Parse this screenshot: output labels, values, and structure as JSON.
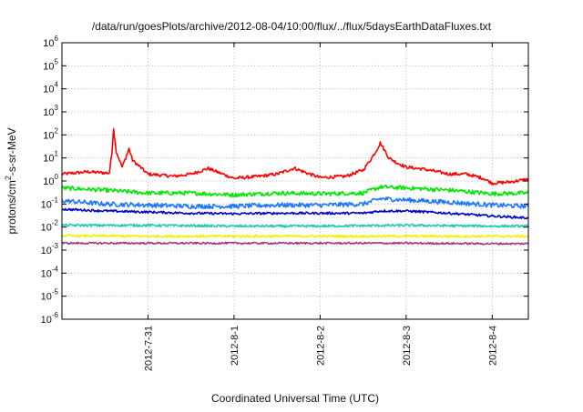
{
  "chart_data": {
    "type": "line",
    "title": "/data/run/goesPlots/archive/2012-08-04/10:00/flux/../flux/5daysEarthDataFluxes.txt",
    "xlabel": "Coordinated Universal Time (UTC)",
    "ylabel_parts": [
      "protons/cm",
      "2",
      "-s-sr-MeV"
    ],
    "x_scale": "time",
    "x_range_days_from_2012_07_30": [
      0.0,
      5.42
    ],
    "x_ticks": [
      {
        "label": "2012-7-31",
        "day": 1.0
      },
      {
        "label": "2012-8-1",
        "day": 2.0
      },
      {
        "label": "2012-8-2",
        "day": 3.0
      },
      {
        "label": "2012-8-3",
        "day": 4.0
      },
      {
        "label": "2012-8-4",
        "day": 5.0
      }
    ],
    "y_scale": "log",
    "ylim": [
      1e-06,
      1000000.0
    ],
    "y_ticks": [
      {
        "base": "10",
        "exp": "6"
      },
      {
        "base": "10",
        "exp": "5"
      },
      {
        "base": "10",
        "exp": "4"
      },
      {
        "base": "10",
        "exp": "3"
      },
      {
        "base": "10",
        "exp": "2"
      },
      {
        "base": "10",
        "exp": "1"
      },
      {
        "base": "10",
        "exp": "0"
      },
      {
        "base": "10",
        "exp": "-1"
      },
      {
        "base": "10",
        "exp": "-2"
      },
      {
        "base": "10",
        "exp": "-3"
      },
      {
        "base": "10",
        "exp": "-4"
      },
      {
        "base": "10",
        "exp": "-5"
      },
      {
        "base": "10",
        "exp": "-6"
      }
    ],
    "grid": true,
    "legend": "none",
    "series": [
      {
        "color": "#ff0000",
        "noise_log10": 0.07,
        "points": [
          [
            0.0,
            2.0
          ],
          [
            0.3,
            2.5
          ],
          [
            0.55,
            2.2
          ],
          [
            0.58,
            15
          ],
          [
            0.6,
            200
          ],
          [
            0.63,
            20
          ],
          [
            0.7,
            4
          ],
          [
            0.78,
            25
          ],
          [
            0.82,
            8
          ],
          [
            1.0,
            2
          ],
          [
            1.3,
            1.6
          ],
          [
            1.5,
            2
          ],
          [
            1.7,
            3.5
          ],
          [
            1.8,
            2.5
          ],
          [
            2.0,
            1.3
          ],
          [
            2.3,
            1.6
          ],
          [
            2.5,
            2
          ],
          [
            2.7,
            3.6
          ],
          [
            2.85,
            2.2
          ],
          [
            3.0,
            1.4
          ],
          [
            3.3,
            1.6
          ],
          [
            3.5,
            3
          ],
          [
            3.6,
            10
          ],
          [
            3.65,
            20
          ],
          [
            3.7,
            45
          ],
          [
            3.8,
            10
          ],
          [
            3.9,
            6
          ],
          [
            4.0,
            4
          ],
          [
            4.2,
            3.3
          ],
          [
            4.5,
            2
          ],
          [
            4.7,
            2
          ],
          [
            4.9,
            1.3
          ],
          [
            5.0,
            0.8
          ],
          [
            5.2,
            0.9
          ],
          [
            5.42,
            1.2
          ]
        ]
      },
      {
        "color": "#00e600",
        "noise_log10": 0.09,
        "points": [
          [
            0.0,
            0.5
          ],
          [
            0.5,
            0.4
          ],
          [
            1.0,
            0.3
          ],
          [
            1.5,
            0.3
          ],
          [
            2.0,
            0.25
          ],
          [
            2.5,
            0.3
          ],
          [
            3.0,
            0.28
          ],
          [
            3.5,
            0.3
          ],
          [
            3.7,
            0.55
          ],
          [
            4.0,
            0.5
          ],
          [
            4.5,
            0.4
          ],
          [
            5.0,
            0.28
          ],
          [
            5.42,
            0.3
          ]
        ]
      },
      {
        "color": "#1e78ff",
        "noise_log10": 0.1,
        "points": [
          [
            0.0,
            0.14
          ],
          [
            0.5,
            0.1
          ],
          [
            1.0,
            0.09
          ],
          [
            1.5,
            0.08
          ],
          [
            2.0,
            0.08
          ],
          [
            2.5,
            0.09
          ],
          [
            3.0,
            0.09
          ],
          [
            3.5,
            0.1
          ],
          [
            3.7,
            0.17
          ],
          [
            4.0,
            0.15
          ],
          [
            4.5,
            0.12
          ],
          [
            5.0,
            0.09
          ],
          [
            5.42,
            0.08
          ]
        ]
      },
      {
        "color": "#0000c8",
        "noise_log10": 0.05,
        "points": [
          [
            0.0,
            0.06
          ],
          [
            0.5,
            0.05
          ],
          [
            1.0,
            0.045
          ],
          [
            1.5,
            0.04
          ],
          [
            2.0,
            0.038
          ],
          [
            2.5,
            0.04
          ],
          [
            3.0,
            0.04
          ],
          [
            3.5,
            0.04
          ],
          [
            3.7,
            0.05
          ],
          [
            4.0,
            0.05
          ],
          [
            4.5,
            0.04
          ],
          [
            5.0,
            0.03
          ],
          [
            5.42,
            0.025
          ]
        ]
      },
      {
        "color": "#20c8b4",
        "noise_log10": 0.05,
        "points": [
          [
            0.0,
            0.012
          ],
          [
            1.0,
            0.012
          ],
          [
            2.0,
            0.011
          ],
          [
            3.0,
            0.011
          ],
          [
            4.0,
            0.012
          ],
          [
            5.0,
            0.011
          ],
          [
            5.42,
            0.011
          ]
        ]
      },
      {
        "color": "#f0f000",
        "noise_log10": 0.05,
        "points": [
          [
            0.0,
            0.0042
          ],
          [
            1.0,
            0.004
          ],
          [
            2.0,
            0.004
          ],
          [
            3.0,
            0.004
          ],
          [
            4.0,
            0.004
          ],
          [
            5.0,
            0.004
          ],
          [
            5.42,
            0.004
          ]
        ]
      },
      {
        "color": "#a03c78",
        "noise_log10": 0.04,
        "points": [
          [
            0.0,
            0.002
          ],
          [
            1.0,
            0.002
          ],
          [
            2.0,
            0.002
          ],
          [
            3.0,
            0.002
          ],
          [
            4.0,
            0.002
          ],
          [
            5.0,
            0.0019
          ],
          [
            5.42,
            0.0019
          ]
        ]
      }
    ]
  }
}
